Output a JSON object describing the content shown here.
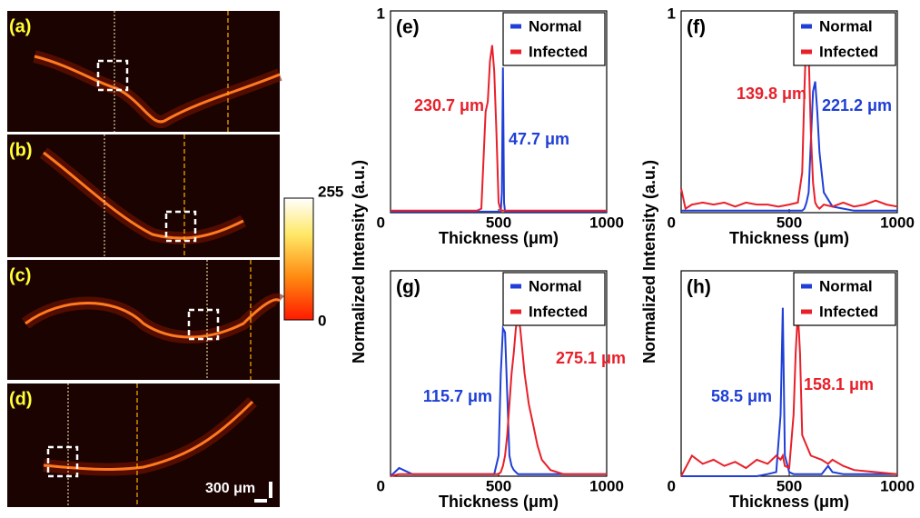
{
  "images": [
    {
      "label": "(a)"
    },
    {
      "label": "(b)"
    },
    {
      "label": "(c)"
    },
    {
      "label": "(d)"
    }
  ],
  "colorbar_ticks": [
    255,
    0
  ],
  "scale_bar": "300 μm",
  "chart_data": [
    {
      "type": "line",
      "title": "(e)",
      "xlabel": "Thickness (μm)",
      "ylabel": "Normalized Intensity (a.u.)",
      "legend": "upper right",
      "xlim": [
        0,
        1000
      ],
      "ylim": [
        0,
        1
      ],
      "xticks": [
        500,
        1000
      ],
      "yticks": [
        0,
        1
      ],
      "x": [
        0,
        100,
        200,
        300,
        400,
        420,
        440,
        450,
        460,
        470,
        480,
        490,
        500,
        510,
        515,
        520,
        525,
        530,
        600,
        700,
        800,
        900,
        1000
      ],
      "series": [
        {
          "name": "Normal",
          "color": "#1f3fd6",
          "annotation": "47.7 μm",
          "values": [
            0.005,
            0.005,
            0.005,
            0.005,
            0.005,
            0.005,
            0.005,
            0.005,
            0.005,
            0.005,
            0.005,
            0.005,
            0.005,
            0.005,
            0.1,
            0.72,
            0.05,
            0.005,
            0.005,
            0.005,
            0.005,
            0.005,
            0.005
          ]
        },
        {
          "name": "Infected",
          "color": "#e8202a",
          "annotation": "230.7 μm",
          "values": [
            0.01,
            0.01,
            0.01,
            0.01,
            0.01,
            0.02,
            0.5,
            0.55,
            0.75,
            0.83,
            0.7,
            0.4,
            0.05,
            0.01,
            0.01,
            0.01,
            0.01,
            0.01,
            0.01,
            0.01,
            0.01,
            0.01,
            0.01
          ]
        }
      ]
    },
    {
      "type": "line",
      "title": "(f)",
      "xlabel": "Thickness (μm)",
      "ylabel": "Normalized Intensity (a.u.)",
      "legend": "upper right",
      "xlim": [
        0,
        1000
      ],
      "ylim": [
        0,
        1
      ],
      "xticks": [
        500,
        1000
      ],
      "yticks": [
        0,
        1
      ],
      "x": [
        0,
        20,
        50,
        100,
        150,
        200,
        250,
        300,
        350,
        400,
        450,
        500,
        540,
        560,
        570,
        580,
        590,
        600,
        610,
        620,
        630,
        640,
        660,
        700,
        750,
        800,
        850,
        900,
        950,
        1000
      ],
      "series": [
        {
          "name": "Normal",
          "color": "#1f3fd6",
          "annotation": "221.2 μm",
          "values": [
            0.01,
            0.01,
            0.01,
            0.01,
            0.01,
            0.01,
            0.01,
            0.01,
            0.01,
            0.01,
            0.01,
            0.01,
            0.01,
            0.01,
            0.02,
            0.05,
            0.1,
            0.35,
            0.6,
            0.65,
            0.5,
            0.3,
            0.1,
            0.03,
            0.02,
            0.01,
            0.01,
            0.01,
            0.01,
            0.01
          ]
        },
        {
          "name": "Infected",
          "color": "#e8202a",
          "annotation": "139.8 μm",
          "values": [
            0.12,
            0.02,
            0.04,
            0.05,
            0.04,
            0.05,
            0.03,
            0.05,
            0.04,
            0.04,
            0.03,
            0.04,
            0.05,
            0.2,
            0.6,
            0.92,
            0.8,
            0.4,
            0.15,
            0.05,
            0.03,
            0.02,
            0.04,
            0.03,
            0.05,
            0.03,
            0.04,
            0.06,
            0.04,
            0.03
          ]
        }
      ]
    },
    {
      "type": "line",
      "title": "(g)",
      "xlabel": "Thickness (μm)",
      "legend": "upper right",
      "xlim": [
        0,
        1000
      ],
      "ylim": [
        0,
        1
      ],
      "xticks": [
        500,
        1000
      ],
      "yticks": [
        0
      ],
      "x": [
        0,
        40,
        100,
        200,
        300,
        400,
        480,
        500,
        510,
        520,
        530,
        540,
        550,
        560,
        570,
        580,
        590,
        600,
        620,
        640,
        660,
        680,
        700,
        740,
        800,
        900,
        1000
      ],
      "series": [
        {
          "name": "Normal",
          "color": "#1f3fd6",
          "annotation": "115.7 μm",
          "values": [
            0,
            0.04,
            0.01,
            0.01,
            0.01,
            0.01,
            0.01,
            0.1,
            0.5,
            0.72,
            0.7,
            0.4,
            0.1,
            0.05,
            0.03,
            0.02,
            0.01,
            0.01,
            0.01,
            0.01,
            0.01,
            0.01,
            0.01,
            0.01,
            0.01,
            0.01,
            0.01
          ]
        },
        {
          "name": "Infected",
          "color": "#e8202a",
          "annotation": "275.1 μm",
          "values": [
            0,
            0.01,
            0.01,
            0.01,
            0.01,
            0.01,
            0.01,
            0.01,
            0.02,
            0.05,
            0.1,
            0.2,
            0.35,
            0.5,
            0.6,
            0.72,
            0.78,
            0.72,
            0.5,
            0.35,
            0.25,
            0.15,
            0.08,
            0.03,
            0.01,
            0.01,
            0.01
          ]
        }
      ]
    },
    {
      "type": "line",
      "title": "(h)",
      "xlabel": "Thickness (μm)",
      "legend": "upper right",
      "xlim": [
        0,
        1000
      ],
      "ylim": [
        0,
        1
      ],
      "xticks": [
        500,
        1000
      ],
      "yticks": [
        0
      ],
      "x": [
        0,
        50,
        100,
        150,
        200,
        250,
        300,
        350,
        400,
        440,
        460,
        470,
        480,
        500,
        520,
        530,
        540,
        550,
        560,
        580,
        600,
        650,
        680,
        700,
        750,
        800,
        900,
        1000
      ],
      "series": [
        {
          "name": "Normal",
          "color": "#1f3fd6",
          "annotation": "58.5 μm",
          "values": [
            0,
            0,
            0,
            0,
            0,
            0,
            0,
            0,
            0.01,
            0.02,
            0.3,
            0.82,
            0.1,
            0.02,
            0.01,
            0.01,
            0.01,
            0.01,
            0.01,
            0.01,
            0.01,
            0.01,
            0.05,
            0.02,
            0.01,
            0.01,
            0.01,
            0.01
          ]
        },
        {
          "name": "Infected",
          "color": "#e8202a",
          "annotation": "158.1 μm",
          "values": [
            0,
            0.1,
            0.06,
            0.08,
            0.05,
            0.07,
            0.04,
            0.08,
            0.06,
            0.1,
            0.08,
            0.1,
            0.05,
            0.04,
            0.3,
            0.6,
            0.8,
            0.6,
            0.2,
            0.15,
            0.1,
            0.08,
            0.06,
            0.08,
            0.05,
            0.03,
            0.02,
            0.01
          ]
        }
      ]
    }
  ]
}
